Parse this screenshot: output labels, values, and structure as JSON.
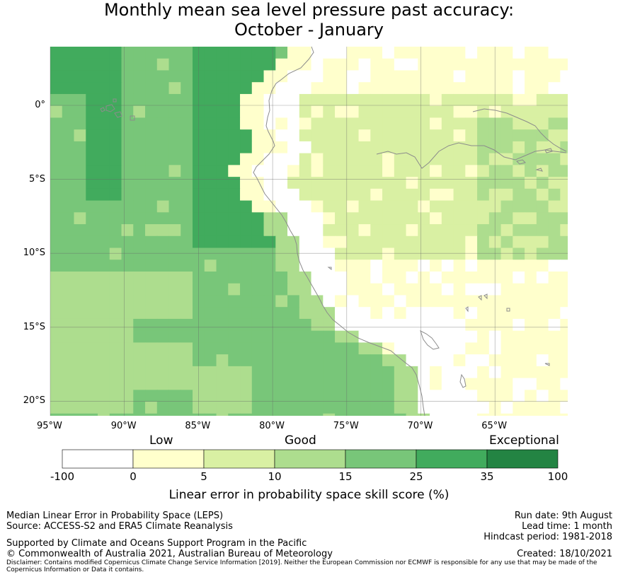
{
  "header": {
    "title_line1": "Monthly mean sea level pressure past accuracy:",
    "title_line2": "October - January"
  },
  "map": {
    "lon_labels": [
      "95°W",
      "90°W",
      "85°W",
      "80°W",
      "75°W",
      "70°W",
      "65°W"
    ],
    "lat_labels": [
      "0°",
      "5°S",
      "10°S",
      "15°S",
      "20°S"
    ],
    "grid_lines": true,
    "extent": {
      "west": -95,
      "east": -60,
      "north": 4,
      "south": -21
    },
    "cell_size_deg": 0.8,
    "category_colors": [
      "#ffffff",
      "#ffffcc",
      "#d9f0a3",
      "#addd8e",
      "#78c679",
      "#41ab5d",
      "#238443"
    ],
    "coast_color": "#8c8c8c"
  },
  "legend": {
    "category_labels": [
      "Low",
      "Good",
      "Exceptional"
    ],
    "ticks": [
      "-100",
      "0",
      "5",
      "10",
      "15",
      "25",
      "35",
      "100"
    ],
    "colors": [
      "#ffffff",
      "#ffffcc",
      "#d9f0a3",
      "#addd8e",
      "#78c679",
      "#41ab5d",
      "#238443"
    ],
    "title": "Linear error in probability space skill score (%)"
  },
  "footer": {
    "method": "Median Linear Error in Probability Space (LEPS)",
    "source": "Source: ACCESS-S2 and ERA5 Climate Reanalysis",
    "support": "Supported by Climate and Oceans Support Program in the Pacific",
    "copyright": "© Commonwealth of Australia 2021, Australian Bureau of Meteorology",
    "disclaimer": "Disclaimer: Contains modified Copernicus Climate Change Service Information [2019]. Neither the European Commission nor ECMWF is responsible for any use that may be made of the Copernicus Information or Data it contains.",
    "run_date": "Run date: 9th August",
    "lead_time": "Lead time: 1 month",
    "hindcast": "Hindcast period: 1981-2018",
    "created": "Created: 18/10/2021"
  }
}
